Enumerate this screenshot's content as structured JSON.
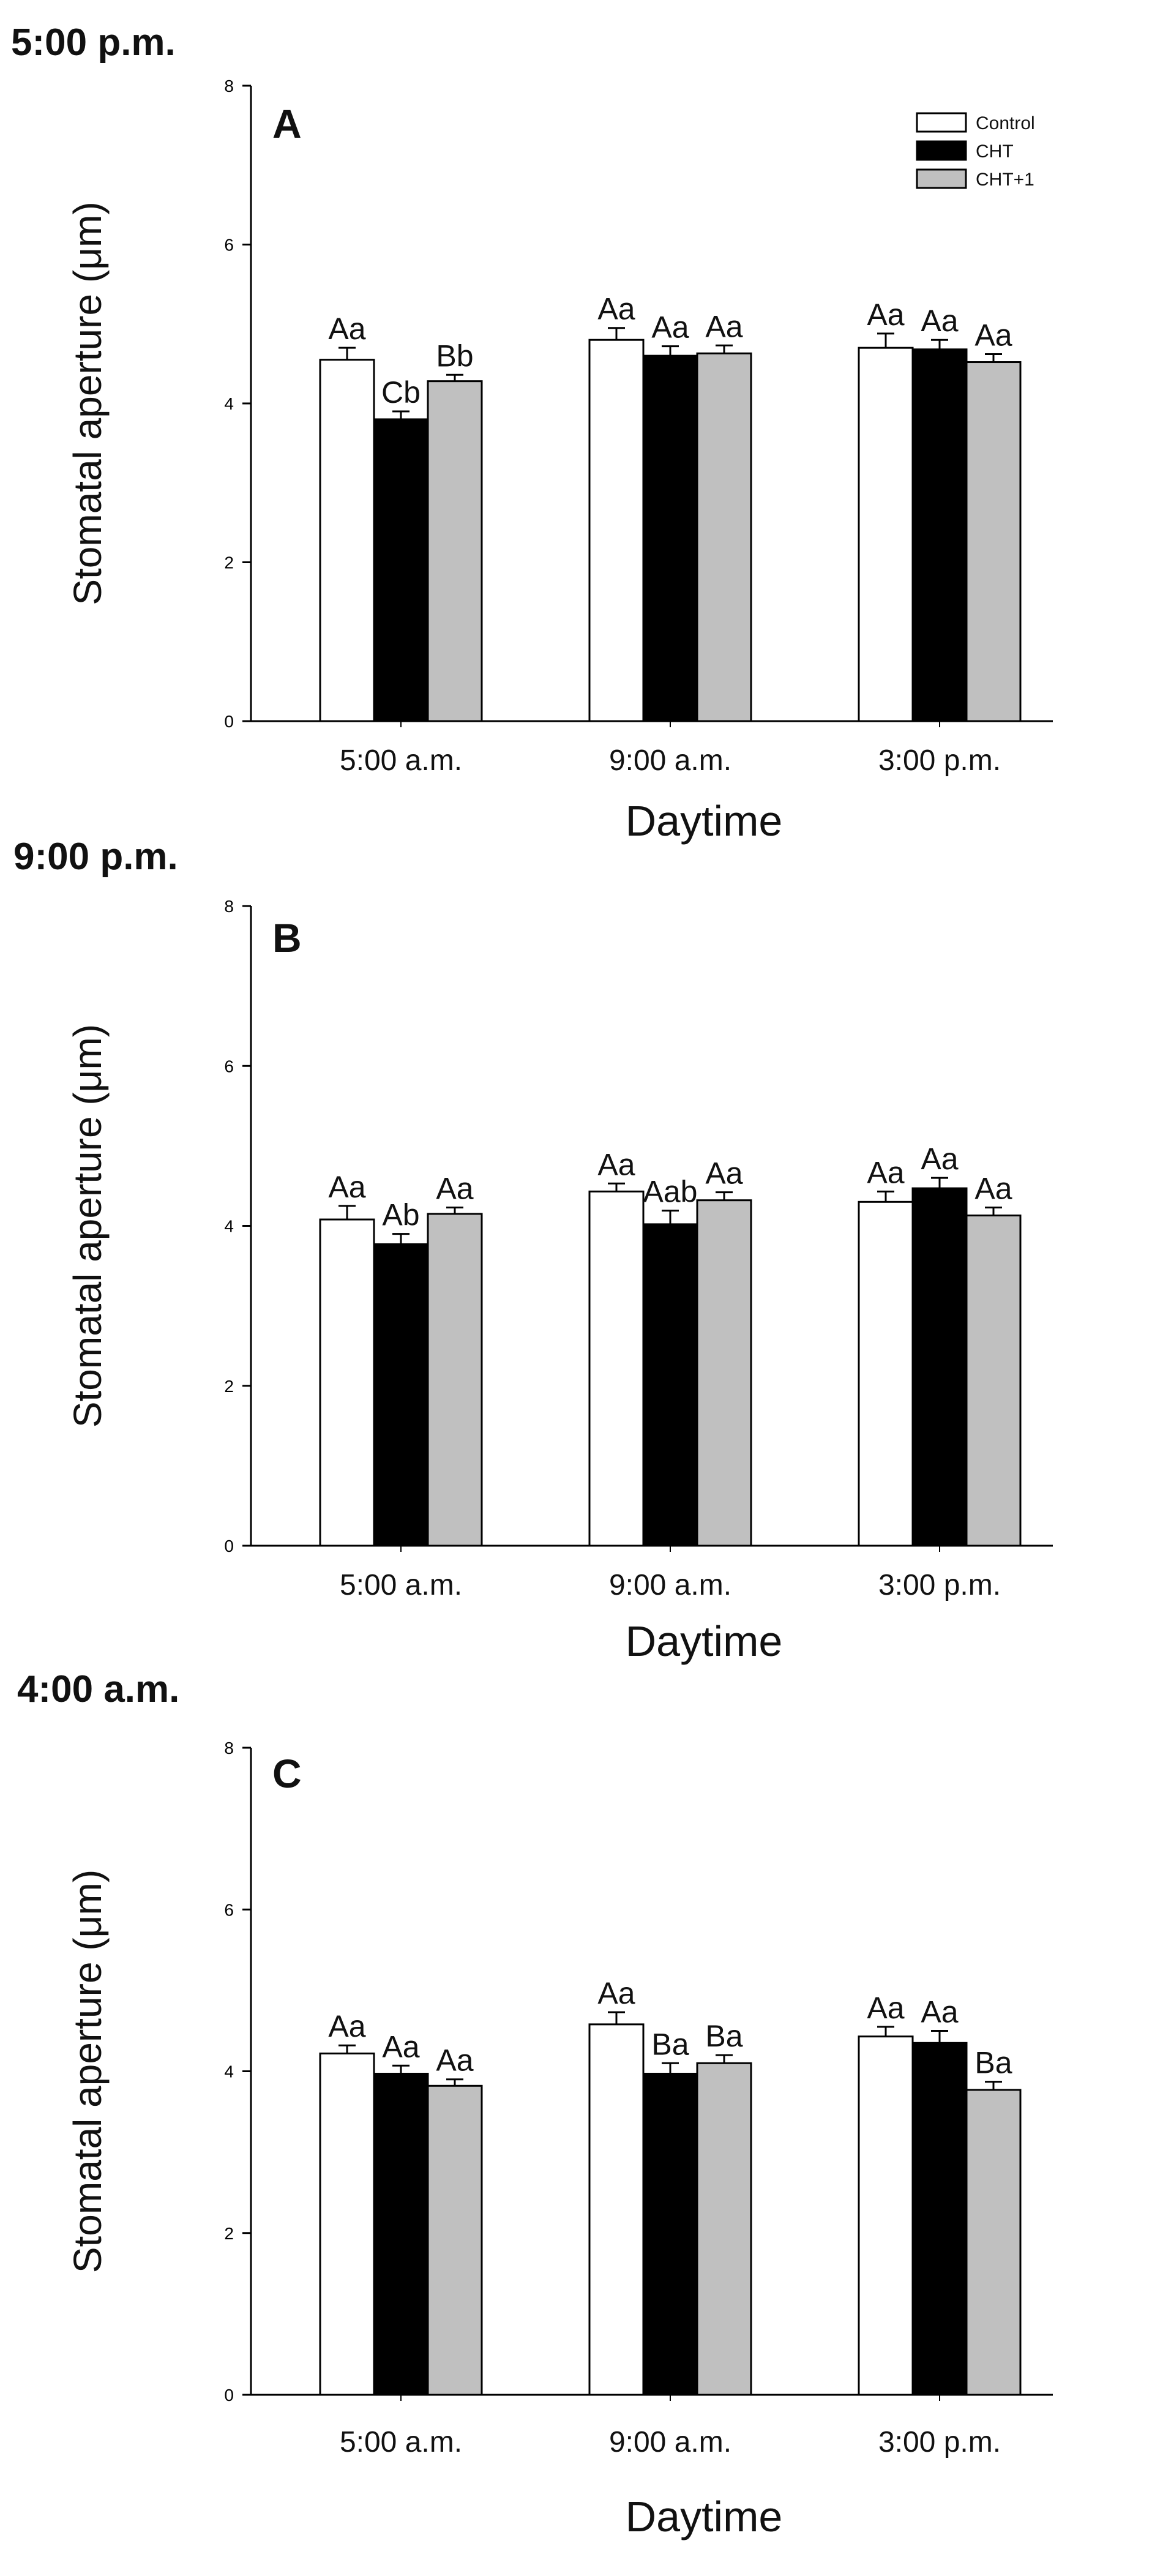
{
  "chart_data": [
    {
      "type": "bar",
      "time_label": "5:00 p.m.",
      "panel_label": "A",
      "categories": [
        "5:00 a.m.",
        "9:00 a.m.",
        "3:00 p.m."
      ],
      "ylabel": "Stomatal aperture (μm)",
      "xlabel": "Daytime",
      "ylim": [
        0,
        8
      ],
      "yticks": [
        0,
        2,
        4,
        6,
        8
      ],
      "legend_position": "top-right",
      "series": [
        {
          "name": "Control",
          "color": "#ffffff",
          "values": [
            4.55,
            4.8,
            4.7
          ],
          "errors": [
            0.15,
            0.15,
            0.18
          ],
          "labels": [
            "Aa",
            "Aa",
            "Aa"
          ]
        },
        {
          "name": "CHT",
          "color": "#000000",
          "values": [
            3.8,
            4.6,
            4.68
          ],
          "errors": [
            0.1,
            0.12,
            0.12
          ],
          "labels": [
            "Cb",
            "Aa",
            "Aa"
          ]
        },
        {
          "name": "CHT+1",
          "color": "#c0c0c0",
          "values": [
            4.28,
            4.63,
            4.52
          ],
          "errors": [
            0.08,
            0.1,
            0.1
          ],
          "labels": [
            "Bb",
            "Aa",
            "Aa"
          ]
        }
      ]
    },
    {
      "type": "bar",
      "time_label": "9:00 p.m.",
      "panel_label": "B",
      "categories": [
        "5:00 a.m.",
        "9:00 a.m.",
        "3:00 p.m."
      ],
      "ylabel": "Stomatal aperture (μm)",
      "xlabel": "Daytime",
      "ylim": [
        0,
        8
      ],
      "yticks": [
        0,
        2,
        4,
        6,
        8
      ],
      "series": [
        {
          "name": "Control",
          "color": "#ffffff",
          "values": [
            4.08,
            4.43,
            4.3
          ],
          "errors": [
            0.17,
            0.1,
            0.13
          ],
          "labels": [
            "Aa",
            "Aa",
            "Aa"
          ]
        },
        {
          "name": "CHT",
          "color": "#000000",
          "values": [
            3.77,
            4.02,
            4.47
          ],
          "errors": [
            0.13,
            0.17,
            0.13
          ],
          "labels": [
            "Ab",
            "Aab",
            "Aa"
          ]
        },
        {
          "name": "CHT+1",
          "color": "#c0c0c0",
          "values": [
            4.15,
            4.32,
            4.13
          ],
          "errors": [
            0.08,
            0.1,
            0.1
          ],
          "labels": [
            "Aa",
            "Aa",
            "Aa"
          ]
        }
      ]
    },
    {
      "type": "bar",
      "time_label": "4:00 a.m.",
      "panel_label": "C",
      "categories": [
        "5:00 a.m.",
        "9:00 a.m.",
        "3:00 p.m."
      ],
      "ylabel": "Stomatal aperture (μm)",
      "xlabel": "Daytime",
      "ylim": [
        0,
        8
      ],
      "yticks": [
        0,
        2,
        4,
        6,
        8
      ],
      "series": [
        {
          "name": "Control",
          "color": "#ffffff",
          "values": [
            4.22,
            4.58,
            4.43
          ],
          "errors": [
            0.1,
            0.15,
            0.12
          ],
          "labels": [
            "Aa",
            "Aa",
            "Aa"
          ]
        },
        {
          "name": "CHT",
          "color": "#000000",
          "values": [
            3.97,
            3.97,
            4.35
          ],
          "errors": [
            0.1,
            0.13,
            0.15
          ],
          "labels": [
            "Aa",
            "Ba",
            "Aa"
          ]
        },
        {
          "name": "CHT+1",
          "color": "#c0c0c0",
          "values": [
            3.82,
            4.1,
            3.77
          ],
          "errors": [
            0.08,
            0.1,
            0.1
          ],
          "labels": [
            "Aa",
            "Ba",
            "Ba"
          ]
        }
      ]
    }
  ]
}
